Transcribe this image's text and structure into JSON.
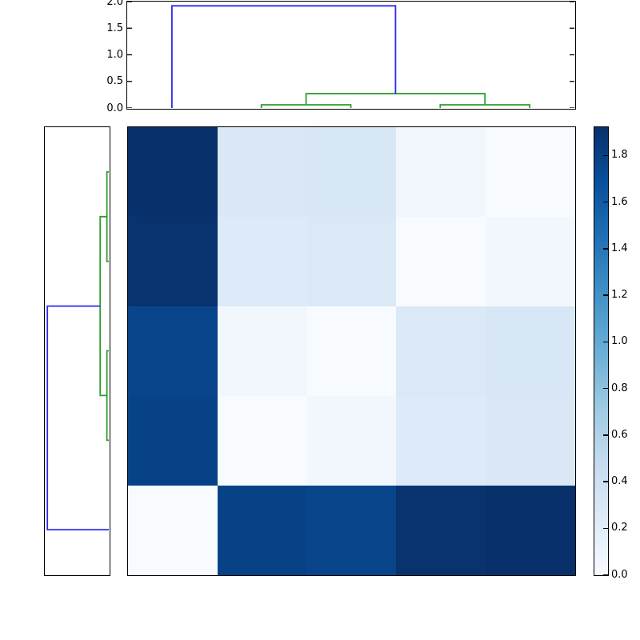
{
  "page": {
    "background": "#ffffff"
  },
  "colors": {
    "axis_border": "#000000",
    "tick_color": "#000000",
    "tick_label_color": "#000000",
    "above_threshold_link": "#2b2bef",
    "cluster_link": "#2e9e2e"
  },
  "chart_data": {
    "type": "heatmap",
    "description": "Hierarchically clustered 5x5 distance matrix (clustermap) with top and left dendrograms and a Blues colorbar",
    "colormap": "Blues",
    "colormap_stops": [
      "#f7fbff",
      "#deebf7",
      "#c6dbef",
      "#9ecae1",
      "#6baed6",
      "#4292c6",
      "#2171b5",
      "#08519c",
      "#08306b"
    ],
    "vmin": 0.0,
    "vmax": 1.92,
    "grid": false,
    "matrix": [
      [
        1.92,
        0.28,
        0.3,
        0.06,
        0.0
      ],
      [
        1.9,
        0.25,
        0.27,
        0.0,
        0.06
      ],
      [
        1.77,
        0.06,
        0.0,
        0.27,
        0.3
      ],
      [
        1.79,
        0.0,
        0.06,
        0.25,
        0.28
      ],
      [
        0.0,
        1.79,
        1.77,
        1.9,
        1.92
      ]
    ],
    "n_rows": 5,
    "n_cols": 5,
    "top_dendrogram": {
      "orientation": "top",
      "axis_max": 2.0,
      "tick_values": [
        0.0,
        0.5,
        1.0,
        1.5,
        2.0
      ],
      "tick_labels": [
        "0.0",
        "0.5",
        "1.0",
        "1.5",
        "2.0"
      ],
      "links": [
        {
          "x1": 1.5,
          "base1": 0.0,
          "x2": 2.5,
          "base2": 0.0,
          "height": 0.06,
          "color": "cluster"
        },
        {
          "x1": 3.5,
          "base1": 0.0,
          "x2": 4.5,
          "base2": 0.0,
          "height": 0.06,
          "color": "cluster"
        },
        {
          "x1": 2.0,
          "base1": 0.06,
          "x2": 4.0,
          "base2": 0.06,
          "height": 0.27,
          "color": "cluster"
        },
        {
          "x1": 0.5,
          "base1": 0.0,
          "x2": 3.0,
          "base2": 0.27,
          "height": 1.92,
          "color": "above"
        }
      ]
    },
    "left_dendrogram": {
      "orientation": "left",
      "axis_max": 2.0,
      "links": [
        {
          "x1": 0.5,
          "base1": 0.0,
          "x2": 1.5,
          "base2": 0.0,
          "height": 0.06,
          "color": "cluster"
        },
        {
          "x1": 2.5,
          "base1": 0.0,
          "x2": 3.5,
          "base2": 0.0,
          "height": 0.06,
          "color": "cluster"
        },
        {
          "x1": 1.0,
          "base1": 0.06,
          "x2": 3.0,
          "base2": 0.06,
          "height": 0.27,
          "color": "cluster"
        },
        {
          "x1": 4.5,
          "base1": 0.0,
          "x2": 2.0,
          "base2": 0.27,
          "height": 1.92,
          "color": "above"
        }
      ]
    },
    "colorbar": {
      "position": "right",
      "tick_values": [
        0.0,
        0.2,
        0.4,
        0.6,
        0.8,
        1.0,
        1.2,
        1.4,
        1.6,
        1.8
      ],
      "tick_labels": [
        "0.0",
        "0.2",
        "0.4",
        "0.6",
        "0.8",
        "1.0",
        "1.2",
        "1.4",
        "1.6",
        "1.8"
      ]
    }
  }
}
